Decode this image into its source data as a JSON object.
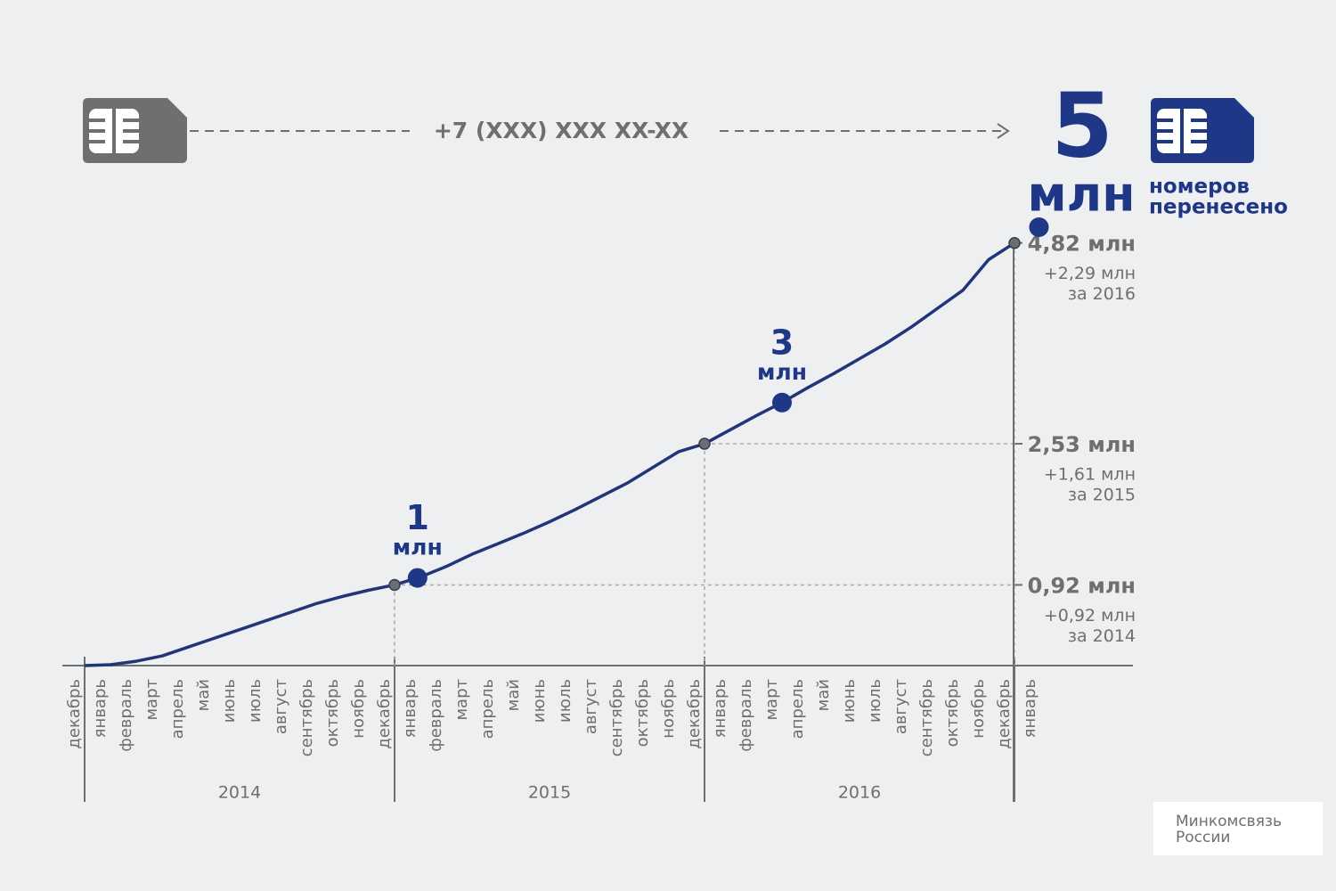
{
  "header": {
    "phone": "+7 (XXX) XXX XX-XX",
    "unit": "млн",
    "caption_1": "номеров",
    "caption_2": "перенесено"
  },
  "chart_data": {
    "type": "line",
    "categories": [
      "декабрь",
      "январь",
      "февраль",
      "март",
      "апрель",
      "май",
      "июнь",
      "июль",
      "август",
      "сентябрь",
      "октябрь",
      "ноябрь",
      "декабрь",
      "январь",
      "февраль",
      "март",
      "апрель",
      "май",
      "июнь",
      "июль",
      "август",
      "сентябрь",
      "октябрь",
      "ноябрь",
      "декабрь",
      "январь",
      "февраль",
      "март",
      "апрель",
      "май",
      "июнь",
      "июль",
      "август",
      "сентябрь",
      "октябрь",
      "ноябрь",
      "декабрь",
      "январь"
    ],
    "years": [
      "2014",
      "2015",
      "2016"
    ],
    "values": [
      0,
      0.01,
      0.05,
      0.11,
      0.21,
      0.31,
      0.41,
      0.51,
      0.61,
      0.71,
      0.79,
      0.86,
      0.92,
      1.01,
      1.13,
      1.27,
      1.39,
      1.51,
      1.64,
      1.78,
      1.93,
      2.08,
      2.26,
      2.44,
      2.53,
      2.69,
      2.85,
      3.0,
      3.17,
      3.33,
      3.5,
      3.67,
      3.86,
      4.07,
      4.28,
      4.63,
      4.82,
      null
    ],
    "color": "#22347a",
    "ylim": [
      0,
      5
    ],
    "milestones": [
      {
        "value": 1,
        "label": "1",
        "unit": "млн"
      },
      {
        "value": 3,
        "label": "3",
        "unit": "млн"
      },
      {
        "value": 5
      }
    ],
    "annotations": [
      {
        "value": 0.92,
        "label": "0,92 млн",
        "change": 0.92,
        "change_label": "+0,92 млн",
        "period": "за 2014"
      },
      {
        "value": 2.53,
        "label": "2,53 млн",
        "change": 1.61,
        "change_label": "+1,61 млн",
        "period": "за 2015"
      },
      {
        "value": 4.82,
        "label": "4,82 млн",
        "change": 2.29,
        "change_label": "+2,29 млн",
        "period": "за 2016"
      }
    ]
  },
  "logo": {
    "line_1": "Минкомсвязь",
    "line_2": "России"
  }
}
